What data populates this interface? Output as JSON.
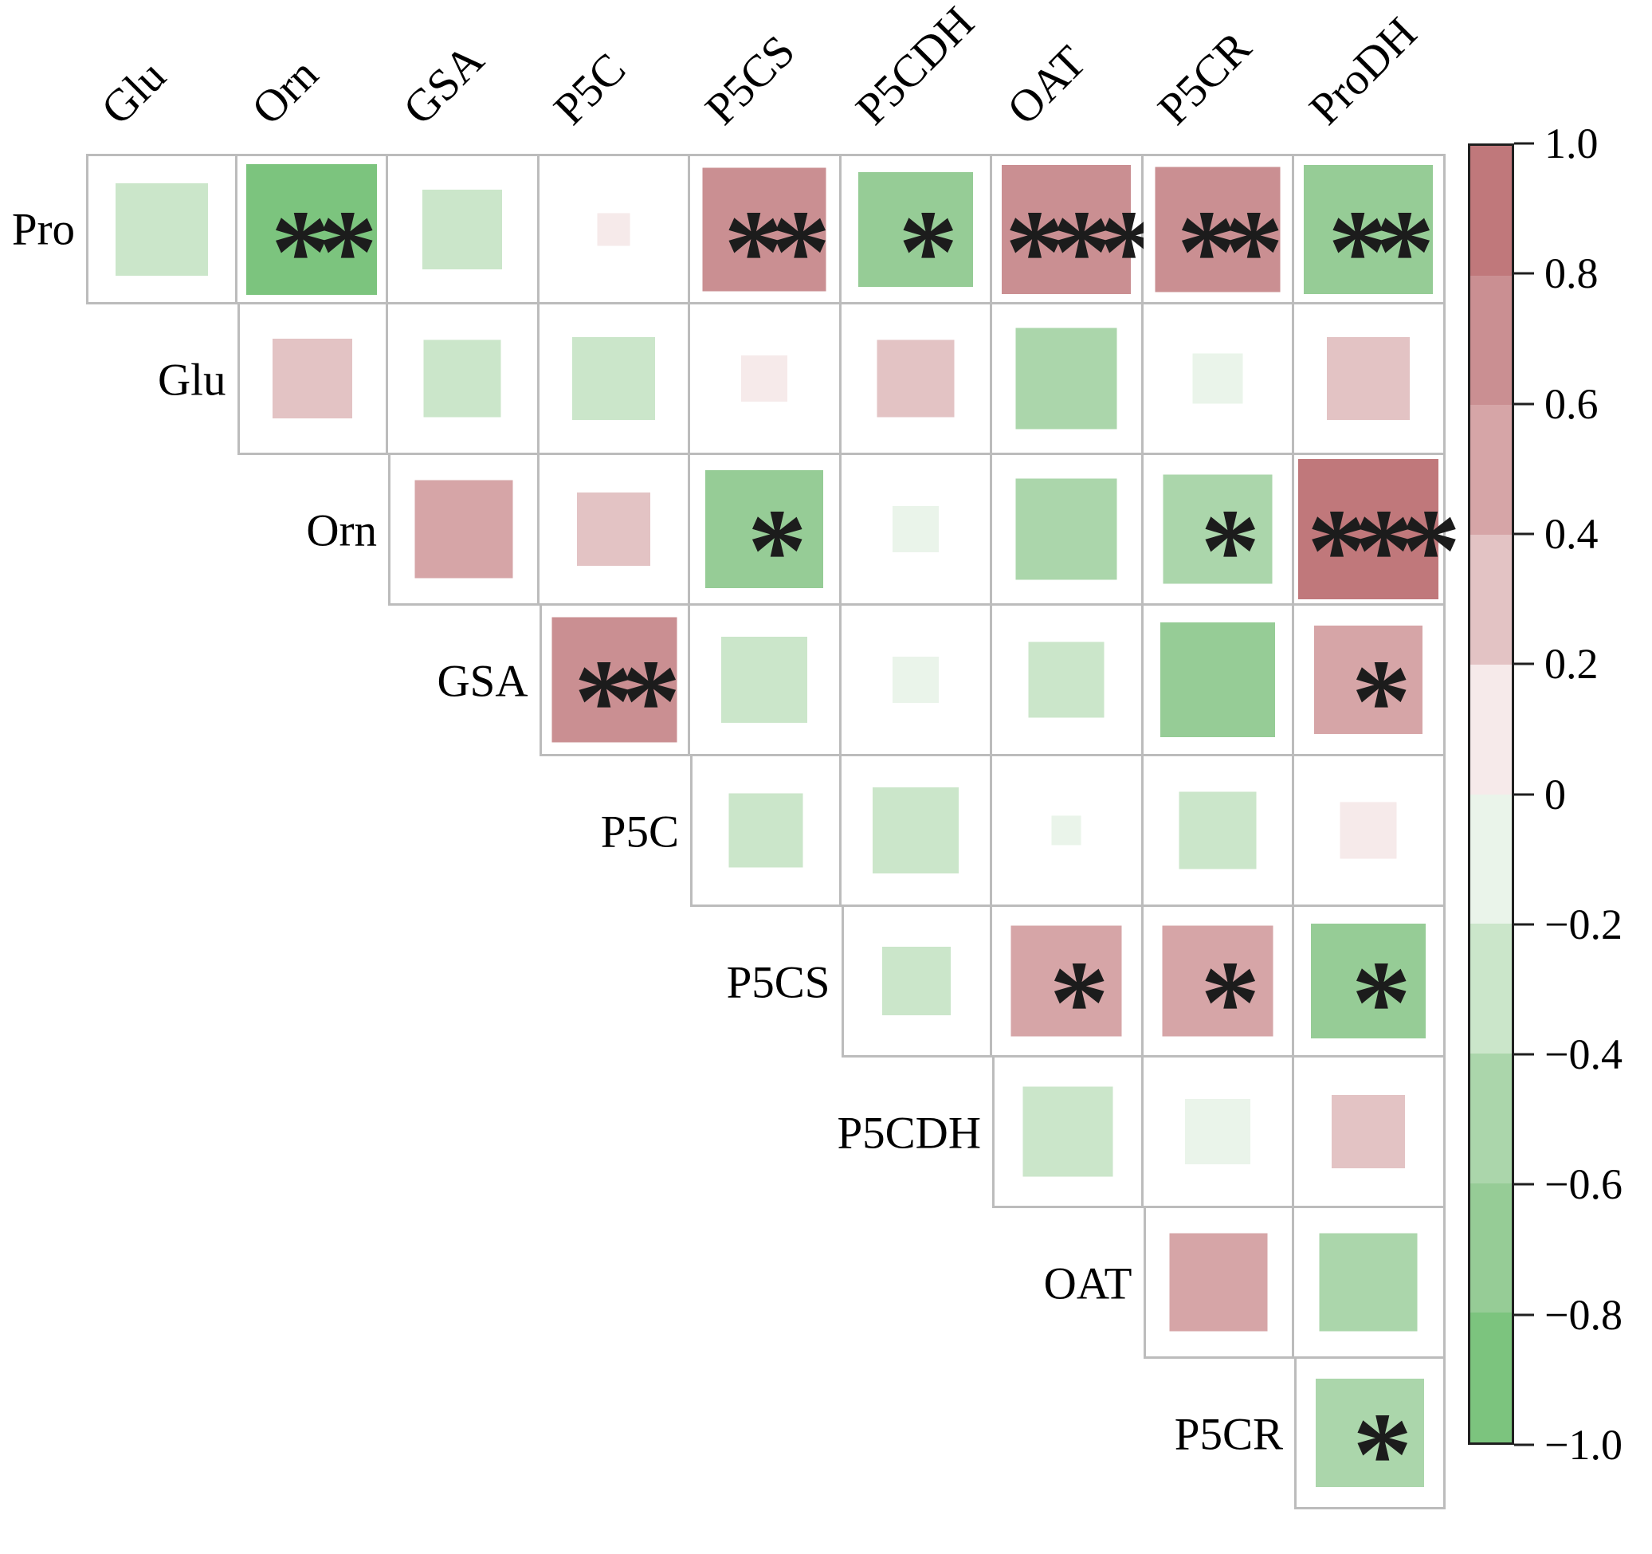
{
  "figure": {
    "description": "Upper-triangle correlation matrix of proline metabolism metabolites and enzymes; square size and color encode correlation coefficient, asterisks mark significance",
    "background": "#ffffff",
    "grid_line_color": "#bcbcbc"
  },
  "chart_data": {
    "type": "heatmap",
    "subtype": "correlation-matrix-upper-triangle",
    "row_labels": [
      "Pro",
      "Glu",
      "Orn",
      "GSA",
      "P5C",
      "P5CS",
      "P5CDH",
      "OAT",
      "P5CR"
    ],
    "col_labels": [
      "Glu",
      "Orn",
      "GSA",
      "P5C",
      "P5CS",
      "P5CDH",
      "OAT",
      "P5CR",
      "ProDH"
    ],
    "legend_position": "right",
    "value_range": [
      -1,
      1
    ],
    "cells": [
      {
        "row": "Pro",
        "col": "Glu",
        "value": -0.4,
        "stars": ""
      },
      {
        "row": "Pro",
        "col": "Orn",
        "value": -0.8,
        "stars": "**"
      },
      {
        "row": "Pro",
        "col": "GSA",
        "value": -0.3,
        "stars": ""
      },
      {
        "row": "Pro",
        "col": "P5C",
        "value": 0.05,
        "stars": ""
      },
      {
        "row": "Pro",
        "col": "P5CS",
        "value": 0.72,
        "stars": "**"
      },
      {
        "row": "Pro",
        "col": "P5CDH",
        "value": -0.62,
        "stars": "*"
      },
      {
        "row": "Pro",
        "col": "OAT",
        "value": 0.78,
        "stars": "***"
      },
      {
        "row": "Pro",
        "col": "P5CR",
        "value": 0.74,
        "stars": "**"
      },
      {
        "row": "Pro",
        "col": "ProDH",
        "value": -0.78,
        "stars": "**"
      },
      {
        "row": "Glu",
        "col": "Orn",
        "value": 0.3,
        "stars": ""
      },
      {
        "row": "Glu",
        "col": "GSA",
        "value": -0.28,
        "stars": ""
      },
      {
        "row": "Glu",
        "col": "P5C",
        "value": -0.32,
        "stars": ""
      },
      {
        "row": "Glu",
        "col": "P5CS",
        "value": 0.1,
        "stars": ""
      },
      {
        "row": "Glu",
        "col": "P5CDH",
        "value": 0.28,
        "stars": ""
      },
      {
        "row": "Glu",
        "col": "OAT",
        "value": -0.48,
        "stars": ""
      },
      {
        "row": "Glu",
        "col": "P5CR",
        "value": -0.12,
        "stars": ""
      },
      {
        "row": "Glu",
        "col": "ProDH",
        "value": 0.32,
        "stars": ""
      },
      {
        "row": "Orn",
        "col": "GSA",
        "value": 0.45,
        "stars": ""
      },
      {
        "row": "Orn",
        "col": "P5C",
        "value": 0.25,
        "stars": ""
      },
      {
        "row": "Orn",
        "col": "P5CS",
        "value": -0.65,
        "stars": "*"
      },
      {
        "row": "Orn",
        "col": "P5CDH",
        "value": -0.1,
        "stars": ""
      },
      {
        "row": "Orn",
        "col": "OAT",
        "value": -0.48,
        "stars": ""
      },
      {
        "row": "Orn",
        "col": "P5CR",
        "value": -0.56,
        "stars": "*"
      },
      {
        "row": "Orn",
        "col": "ProDH",
        "value": 0.92,
        "stars": "***"
      },
      {
        "row": "GSA",
        "col": "P5C",
        "value": 0.74,
        "stars": "**"
      },
      {
        "row": "GSA",
        "col": "P5CS",
        "value": -0.35,
        "stars": ""
      },
      {
        "row": "GSA",
        "col": "P5CDH",
        "value": -0.1,
        "stars": ""
      },
      {
        "row": "GSA",
        "col": "OAT",
        "value": -0.27,
        "stars": ""
      },
      {
        "row": "GSA",
        "col": "P5CR",
        "value": -0.62,
        "stars": ""
      },
      {
        "row": "GSA",
        "col": "ProDH",
        "value": 0.55,
        "stars": "*"
      },
      {
        "row": "P5C",
        "col": "P5CS",
        "value": -0.26,
        "stars": ""
      },
      {
        "row": "P5C",
        "col": "P5CDH",
        "value": -0.35,
        "stars": ""
      },
      {
        "row": "P5C",
        "col": "OAT",
        "value": -0.04,
        "stars": ""
      },
      {
        "row": "P5C",
        "col": "P5CR",
        "value": -0.28,
        "stars": ""
      },
      {
        "row": "P5C",
        "col": "ProDH",
        "value": 0.15,
        "stars": ""
      },
      {
        "row": "P5CS",
        "col": "P5CDH",
        "value": -0.22,
        "stars": ""
      },
      {
        "row": "P5CS",
        "col": "OAT",
        "value": 0.58,
        "stars": "*"
      },
      {
        "row": "P5CS",
        "col": "P5CR",
        "value": 0.58,
        "stars": "*"
      },
      {
        "row": "P5CS",
        "col": "ProDH",
        "value": -0.62,
        "stars": "*"
      },
      {
        "row": "P5CDH",
        "col": "OAT",
        "value": -0.38,
        "stars": ""
      },
      {
        "row": "P5CDH",
        "col": "P5CR",
        "value": -0.2,
        "stars": ""
      },
      {
        "row": "P5CDH",
        "col": "ProDH",
        "value": 0.25,
        "stars": ""
      },
      {
        "row": "OAT",
        "col": "P5CR",
        "value": 0.45,
        "stars": ""
      },
      {
        "row": "OAT",
        "col": "ProDH",
        "value": -0.45,
        "stars": ""
      },
      {
        "row": "P5CR",
        "col": "ProDH",
        "value": -0.55,
        "stars": "*"
      }
    ],
    "colorbar": {
      "min": -1.0,
      "max": 1.0,
      "tick_step": 0.2,
      "tick_labels": [
        "1.0",
        "0.8",
        "0.6",
        "0.4",
        "0.2",
        "0",
        "−0.2",
        "−0.4",
        "−0.6",
        "−0.8",
        "−1.0"
      ],
      "bin_colors_top_to_bottom": [
        "#c0787b",
        "#ca8f92",
        "#d6a5a7",
        "#e3c3c4",
        "#f6eaea",
        "#eaf4ea",
        "#cbe6ca",
        "#abd6ab",
        "#96cc96",
        "#7cc47e"
      ]
    }
  }
}
